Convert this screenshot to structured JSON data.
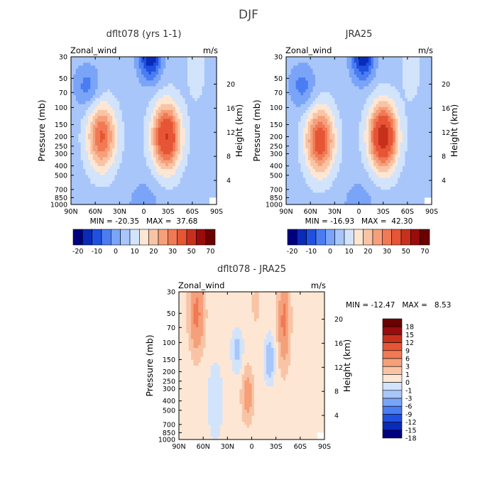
{
  "figure_title": "DJF",
  "chart_data": [
    {
      "type": "heatmap",
      "title": "dflt078 (yrs 1-1)",
      "field_label": "Zonal_wind",
      "units": "m/s",
      "xlabel": "",
      "ylabel": "Pressure (mb)",
      "y2label": "Height (km)",
      "x_ticks": [
        "90N",
        "60N",
        "30N",
        "0",
        "30S",
        "60S",
        "90S"
      ],
      "y_ticks": [
        "30",
        "50",
        "70",
        "100",
        "150",
        "200",
        "250",
        "300",
        "400",
        "500",
        "700",
        "850",
        "1000"
      ],
      "y2_ticks": [
        "20",
        "16",
        "12",
        "8",
        "4"
      ],
      "y_scale": "log",
      "stats": "MIN = -20.35   MAX =  37.68",
      "min": -20.35,
      "max": 37.68,
      "colorbar": {
        "orientation": "horizontal",
        "labels": [
          "-20",
          "-10",
          "0",
          "10",
          "20",
          "30",
          "50",
          "70"
        ]
      },
      "jets": [
        {
          "lat": -28,
          "p": 200,
          "peak": 37.68
        },
        {
          "lat": 52,
          "p": 200,
          "peak": 28
        }
      ],
      "x_range": [
        "90N",
        "90S"
      ],
      "y_range": [
        1000,
        30
      ]
    },
    {
      "type": "heatmap",
      "title": "JRA25",
      "field_label": "Zonal_wind",
      "units": "m/s",
      "xlabel": "",
      "ylabel": "Pressure (mb)",
      "y2label": "Height (km)",
      "x_ticks": [
        "90N",
        "60N",
        "30N",
        "0",
        "30S",
        "60S",
        "90S"
      ],
      "y_ticks": [
        "30",
        "50",
        "70",
        "100",
        "150",
        "200",
        "250",
        "300",
        "400",
        "500",
        "700",
        "850",
        "1000"
      ],
      "y2_ticks": [
        "20",
        "16",
        "12",
        "8",
        "4"
      ],
      "y_scale": "log",
      "stats": "MIN = -16.93   MAX =  42.30",
      "min": -16.93,
      "max": 42.3,
      "colorbar": {
        "orientation": "horizontal",
        "labels": [
          "-20",
          "-10",
          "0",
          "10",
          "20",
          "30",
          "50",
          "70"
        ]
      },
      "jets": [
        {
          "lat": -30,
          "p": 200,
          "peak": 42.3
        },
        {
          "lat": 48,
          "p": 220,
          "peak": 32
        }
      ],
      "x_range": [
        "90N",
        "90S"
      ],
      "y_range": [
        1000,
        30
      ]
    },
    {
      "type": "heatmap",
      "title": "dflt078 - JRA25",
      "field_label": "Zonal_wind",
      "units": "m/s",
      "xlabel": "",
      "ylabel": "Pressure (mb)",
      "y2label": "Height (km)",
      "x_ticks": [
        "90N",
        "60N",
        "30N",
        "0",
        "30S",
        "60S",
        "90S"
      ],
      "y_ticks": [
        "30",
        "50",
        "70",
        "100",
        "150",
        "200",
        "250",
        "300",
        "400",
        "500",
        "700",
        "850",
        "1000"
      ],
      "y2_ticks": [
        "20",
        "16",
        "12",
        "8",
        "4"
      ],
      "y_scale": "log",
      "stats": "MIN = -12.47   MAX =   8.53",
      "min": -12.47,
      "max": 8.53,
      "colorbar": {
        "orientation": "vertical",
        "labels": [
          "18",
          "15",
          "12",
          "9",
          "6",
          "3",
          "1",
          "0",
          "-1",
          "-3",
          "-6",
          "-9",
          "-12",
          "-15",
          "-18"
        ]
      },
      "x_range": [
        "90N",
        "90S"
      ],
      "y_range": [
        1000,
        30
      ]
    }
  ],
  "colors": {
    "abs_scale": [
      "#00007f",
      "#0a2bb8",
      "#2050e0",
      "#4a7df2",
      "#7aa4f7",
      "#a8c6fa",
      "#d2e3fc",
      "#fde7d4",
      "#f9c4a5",
      "#f5a07a",
      "#f07a55",
      "#e65535",
      "#c8301e",
      "#9a0c0c",
      "#6b0000"
    ],
    "diff_scale": [
      "#00007f",
      "#0a2bb8",
      "#2050e0",
      "#4a7df2",
      "#7aa4f7",
      "#a8c6fa",
      "#d2e3fc",
      "#fde7d4",
      "#f9c4a5",
      "#f5a07a",
      "#f07a55",
      "#e65535",
      "#c8301e",
      "#9a0c0c",
      "#6b0000"
    ]
  }
}
